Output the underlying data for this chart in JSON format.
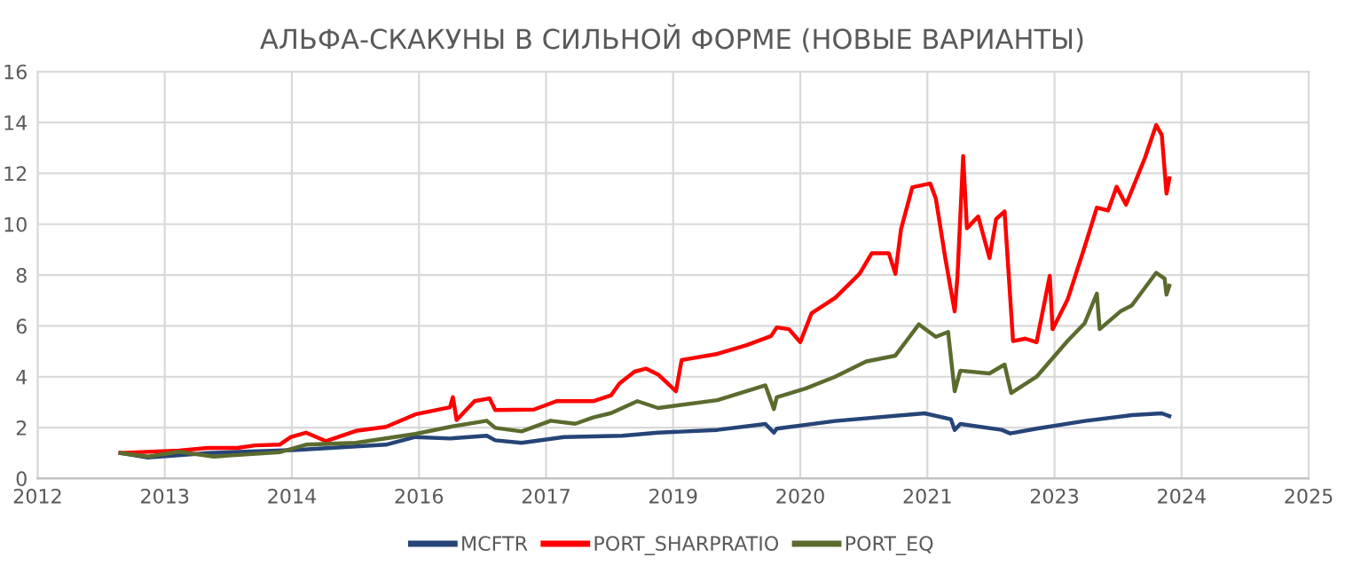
{
  "chart_data": {
    "type": "line",
    "title": "АЛЬФА-СКАКУНЫ В СИЛЬНОЙ ФОРМЕ (НОВЫЕ ВАРИАНТЫ)",
    "xlim": [
      2011.77,
      2025.27
    ],
    "xticks": [
      {
        "value": 2011.77,
        "label": "2012"
      },
      {
        "value": 2013.12,
        "label": "2013"
      },
      {
        "value": 2014.47,
        "label": "2014"
      },
      {
        "value": 2015.82,
        "label": "2016"
      },
      {
        "value": 2017.17,
        "label": "2017"
      },
      {
        "value": 2018.52,
        "label": "2019"
      },
      {
        "value": 2019.87,
        "label": "2020"
      },
      {
        "value": 2021.22,
        "label": "2021"
      },
      {
        "value": 2022.57,
        "label": "2023"
      },
      {
        "value": 2023.92,
        "label": "2024"
      },
      {
        "value": 2025.27,
        "label": "2025"
      }
    ],
    "ylim": [
      0,
      16
    ],
    "yticks": [
      0,
      2,
      4,
      6,
      8,
      10,
      12,
      14,
      16
    ],
    "grid": true,
    "legend": "bottom",
    "line_style": "solid",
    "marker": "none",
    "series": [
      {
        "name": "MCFTR",
        "color": "#264478",
        "x": [
          2012.65,
          2012.94,
          2013.58,
          2014.52,
          2015.47,
          2015.78,
          2016.15,
          2016.54,
          2016.63,
          2016.91,
          2017.36,
          2017.98,
          2018.36,
          2018.99,
          2019.5,
          2019.59,
          2019.62,
          2020.24,
          2021.19,
          2021.47,
          2021.51,
          2021.57,
          2022.01,
          2022.1,
          2022.38,
          2022.89,
          2023.39,
          2023.71,
          2023.79
        ],
        "values": [
          1.0,
          0.82,
          1.0,
          1.12,
          1.33,
          1.63,
          1.57,
          1.68,
          1.5,
          1.4,
          1.63,
          1.68,
          1.8,
          1.91,
          2.14,
          1.8,
          1.96,
          2.26,
          2.56,
          2.33,
          1.91,
          2.14,
          1.91,
          1.77,
          1.96,
          2.26,
          2.49,
          2.56,
          2.45
        ]
      },
      {
        "name": "PORT_SHARPRATIO",
        "color": "#ff0000",
        "x": [
          2012.65,
          2013.27,
          2013.58,
          2013.89,
          2014.08,
          2014.34,
          2014.46,
          2014.62,
          2014.83,
          2015.15,
          2015.47,
          2015.78,
          2016.15,
          2016.18,
          2016.22,
          2016.41,
          2016.57,
          2016.63,
          2017.04,
          2017.28,
          2017.67,
          2017.86,
          2017.95,
          2018.11,
          2018.23,
          2018.36,
          2018.55,
          2018.61,
          2018.99,
          2019.3,
          2019.56,
          2019.62,
          2019.75,
          2019.87,
          2019.99,
          2020.24,
          2020.5,
          2020.63,
          2020.81,
          2020.88,
          2020.94,
          2021.06,
          2021.25,
          2021.31,
          2021.41,
          2021.51,
          2021.54,
          2021.6,
          2021.64,
          2021.76,
          2021.88,
          2021.95,
          2022.04,
          2022.13,
          2022.26,
          2022.38,
          2022.52,
          2022.55,
          2022.71,
          2022.89,
          2023.02,
          2023.14,
          2023.23,
          2023.33,
          2023.53,
          2023.65,
          2023.71,
          2023.76,
          2023.79
        ],
        "values": [
          1.0,
          1.1,
          1.2,
          1.2,
          1.3,
          1.33,
          1.63,
          1.8,
          1.47,
          1.87,
          2.03,
          2.52,
          2.8,
          3.2,
          2.3,
          3.04,
          3.15,
          2.69,
          2.71,
          3.04,
          3.04,
          3.27,
          3.74,
          4.2,
          4.32,
          4.09,
          3.43,
          4.66,
          4.9,
          5.24,
          5.6,
          5.94,
          5.87,
          5.36,
          6.5,
          7.1,
          8.05,
          8.86,
          8.86,
          8.05,
          9.8,
          11.45,
          11.6,
          11.0,
          8.67,
          6.57,
          7.97,
          12.68,
          9.84,
          10.3,
          8.67,
          10.2,
          10.5,
          5.4,
          5.5,
          5.36,
          7.97,
          5.87,
          7.04,
          9.1,
          10.65,
          10.54,
          11.47,
          10.77,
          12.6,
          13.9,
          13.5,
          11.2,
          11.8
        ]
      },
      {
        "name": "PORT_EQ",
        "color": "#5b6b2e",
        "x": [
          2012.65,
          2012.94,
          2013.27,
          2013.64,
          2014.34,
          2014.62,
          2015.15,
          2015.78,
          2016.15,
          2016.54,
          2016.63,
          2016.91,
          2017.22,
          2017.48,
          2017.67,
          2017.86,
          2018.14,
          2018.36,
          2018.99,
          2019.5,
          2019.59,
          2019.62,
          2019.93,
          2020.24,
          2020.57,
          2020.88,
          2021.13,
          2021.31,
          2021.44,
          2021.51,
          2021.57,
          2021.88,
          2022.04,
          2022.11,
          2022.38,
          2022.71,
          2022.89,
          2023.02,
          2023.05,
          2023.27,
          2023.39,
          2023.65,
          2023.74,
          2023.76,
          2023.79
        ],
        "values": [
          1.0,
          0.86,
          1.05,
          0.86,
          1.03,
          1.33,
          1.4,
          1.75,
          2.03,
          2.27,
          1.99,
          1.85,
          2.27,
          2.15,
          2.4,
          2.57,
          3.04,
          2.77,
          3.08,
          3.66,
          2.73,
          3.19,
          3.54,
          4.0,
          4.6,
          4.83,
          6.06,
          5.57,
          5.76,
          3.43,
          4.24,
          4.13,
          4.48,
          3.36,
          4.0,
          5.41,
          6.1,
          7.27,
          5.87,
          6.57,
          6.8,
          8.09,
          7.86,
          7.23,
          7.58
        ]
      }
    ]
  }
}
